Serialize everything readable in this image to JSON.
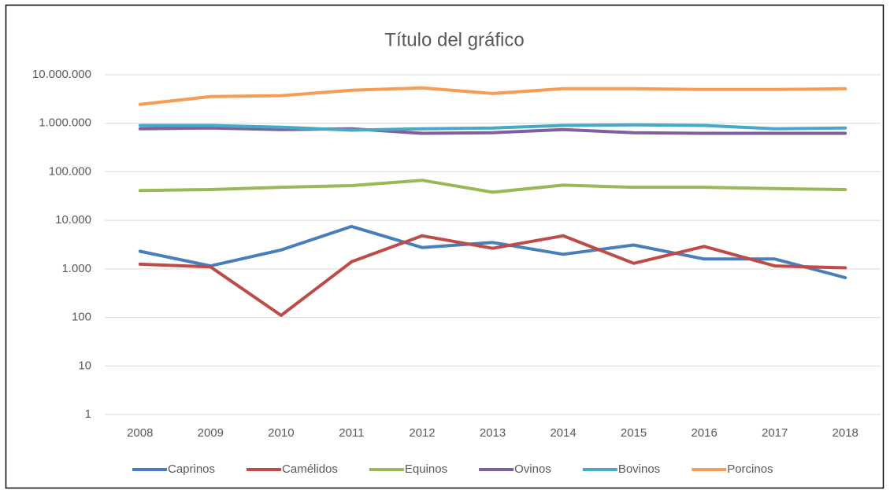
{
  "chart_data": {
    "type": "line",
    "title": "Título del gráfico",
    "categories": [
      "2008",
      "2009",
      "2010",
      "2011",
      "2012",
      "2013",
      "2014",
      "2015",
      "2016",
      "2017",
      "2018"
    ],
    "log_scale": true,
    "grid": true,
    "legend": "bottom",
    "ylim": [
      1,
      10000000
    ],
    "yticks": [
      1,
      10,
      100,
      {
        "value": 1000,
        "label": "1.000"
      },
      {
        "value": 10000,
        "label": "10.000"
      },
      {
        "value": 100000,
        "label": "100.000"
      },
      {
        "value": 1000000,
        "label": "1.000.000"
      },
      {
        "value": 10000000,
        "label": "10.000.000"
      }
    ],
    "series": [
      {
        "name": "Caprinos",
        "color": "#4a7ebb",
        "values": [
          2300,
          1150,
          2450,
          7500,
          2750,
          3500,
          2000,
          3100,
          1600,
          1600,
          660
        ]
      },
      {
        "name": "Camélidos",
        "color": "#be4b48",
        "values": [
          1250,
          1100,
          110,
          1400,
          4800,
          2650,
          4800,
          1300,
          2900,
          1150,
          1050
        ]
      },
      {
        "name": "Equinos",
        "color": "#98b954",
        "values": [
          41000,
          43000,
          48000,
          52000,
          67000,
          38000,
          53000,
          48000,
          48000,
          45000,
          43000
        ]
      },
      {
        "name": "Ovinos",
        "color": "#7d60a0",
        "values": [
          770000,
          800000,
          740000,
          770000,
          620000,
          640000,
          740000,
          640000,
          620000,
          620000,
          620000
        ]
      },
      {
        "name": "Bovinos",
        "color": "#46aac5",
        "values": [
          900000,
          900000,
          830000,
          720000,
          770000,
          800000,
          900000,
          930000,
          900000,
          770000,
          800000
        ]
      },
      {
        "name": "Porcinos",
        "color": "#f59d56",
        "values": [
          2450000,
          3550000,
          3700000,
          4800000,
          5350000,
          4100000,
          5150000,
          5150000,
          4950000,
          4950000,
          5150000
        ]
      }
    ]
  }
}
